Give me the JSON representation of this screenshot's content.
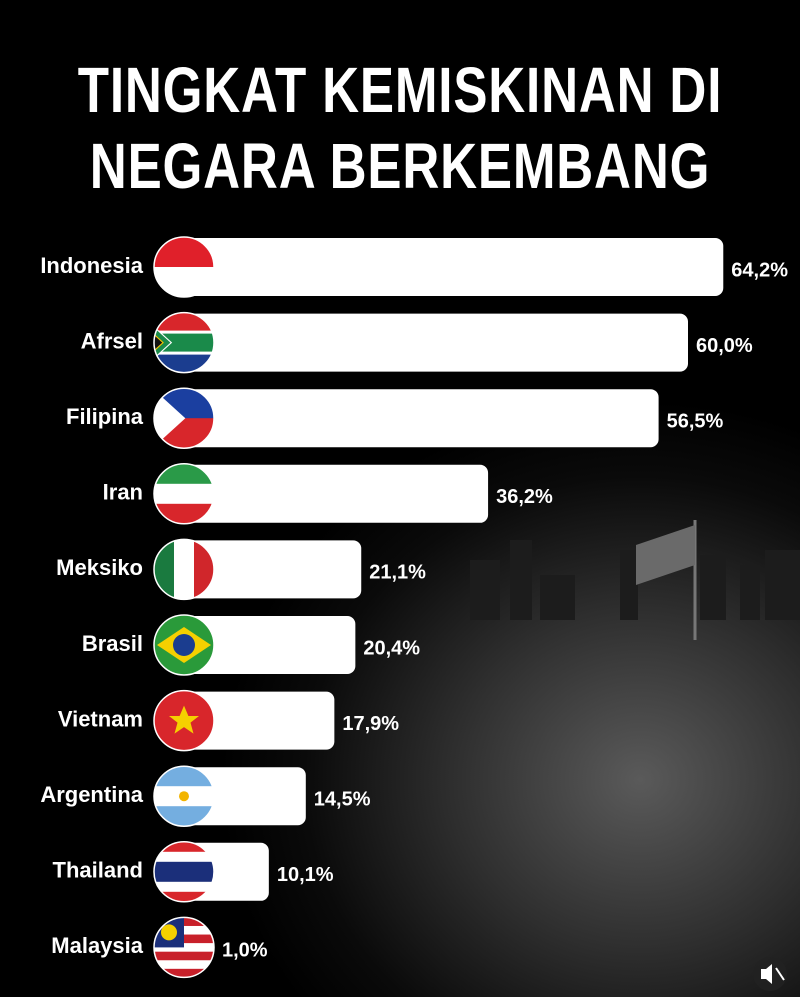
{
  "chart_data": {
    "type": "bar",
    "orientation": "horizontal",
    "title": "TINGKAT KEMISKINAN DI NEGARA BERKEMBANG",
    "categories": [
      "Indonesia",
      "Afrsel",
      "Filipina",
      "Iran",
      "Meksiko",
      "Brasil",
      "Vietnam",
      "Argentina",
      "Thailand",
      "Malaysia"
    ],
    "values": [
      64.2,
      60.0,
      56.5,
      36.2,
      21.1,
      20.4,
      17.9,
      14.5,
      10.1,
      1.0
    ],
    "value_labels": [
      "64,2%",
      "60,0%",
      "56,5%",
      "36,2%",
      "21,1%",
      "20,4%",
      "17,9%",
      "14,5%",
      "10,1%",
      "1,0%"
    ],
    "color": "#ffffff"
  }
}
